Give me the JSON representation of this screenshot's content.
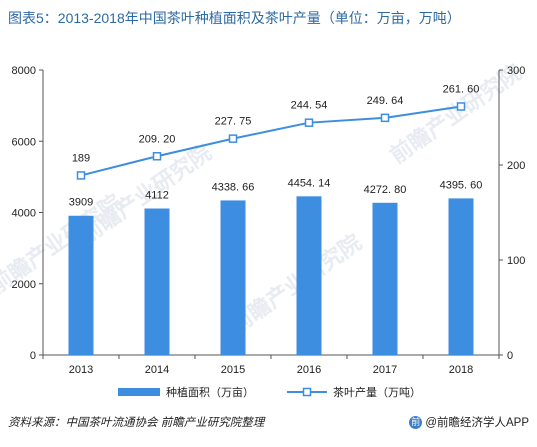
{
  "title": "图表5：2013-2018年中国茶叶种植面积及茶叶产量（单位：万亩，万吨）",
  "chart_data": {
    "type": "bar+line",
    "categories": [
      "2013",
      "2014",
      "2015",
      "2016",
      "2017",
      "2018"
    ],
    "series": [
      {
        "name": "种植面积（万亩）",
        "kind": "bar",
        "axis": "left",
        "values": [
          3909,
          4112,
          4338.66,
          4454.14,
          4272.8,
          4395.6
        ],
        "labels": [
          "3909",
          "4112",
          "4338. 66",
          "4454. 14",
          "4272. 80",
          "4395. 60"
        ],
        "color": "#3d8ee0"
      },
      {
        "name": "茶叶产量（万吨）",
        "kind": "line",
        "axis": "right",
        "values": [
          189,
          209.2,
          227.75,
          244.54,
          249.64,
          261.6
        ],
        "labels": [
          "189",
          "209. 20",
          "227. 75",
          "244. 54",
          "249. 64",
          "261. 60"
        ],
        "color": "#3d8ee0"
      }
    ],
    "y_left": {
      "min": 0,
      "max": 8000,
      "ticks": [
        "0",
        "2000",
        "4000",
        "6000",
        "8000"
      ]
    },
    "y_right": {
      "min": 0,
      "max": 300,
      "ticks": [
        "0",
        "100",
        "200",
        "300"
      ]
    },
    "grid": false,
    "legend_position": "bottom"
  },
  "footer": {
    "source": "资料来源：中国茶叶流通协会 前瞻产业研究院整理",
    "brand": "@前瞻经济学人APP",
    "logo_char": "前"
  },
  "watermark": "前瞻产业研究院"
}
